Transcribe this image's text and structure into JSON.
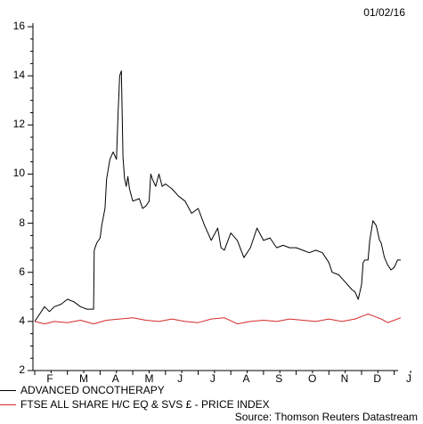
{
  "date_label": "01/02/16",
  "source": "Source: Thomson Reuters Datastream",
  "chart_data": {
    "type": "line",
    "title": "",
    "xlabel": "",
    "ylabel": "",
    "ylim": [
      2,
      16
    ],
    "yticks": [
      2,
      4,
      6,
      8,
      10,
      12,
      14,
      16
    ],
    "month_labels": [
      "F",
      "M",
      "A",
      "M",
      "J",
      "J",
      "A",
      "S",
      "O",
      "N",
      "D",
      "J"
    ],
    "grid": false,
    "legend_position": "bottom-left",
    "series": [
      {
        "name": "ADVANCED ONCOTHERAPY",
        "color": "#000000",
        "t": [
          0,
          0.15,
          0.3,
          0.45,
          0.6,
          0.8,
          1.0,
          1.2,
          1.4,
          1.6,
          1.8,
          1.82,
          1.9,
          2.0,
          2.05,
          2.15,
          2.2,
          2.3,
          2.4,
          2.5,
          2.55,
          2.6,
          2.65,
          2.7,
          2.75,
          2.8,
          2.85,
          2.9,
          3.0,
          3.2,
          3.3,
          3.4,
          3.5,
          3.55,
          3.6,
          3.7,
          3.8,
          3.9,
          4.0,
          4.2,
          4.4,
          4.6,
          4.8,
          5.0,
          5.2,
          5.4,
          5.6,
          5.7,
          5.8,
          6.0,
          6.2,
          6.4,
          6.6,
          6.8,
          7.0,
          7.2,
          7.4,
          7.6,
          7.8,
          8.0,
          8.2,
          8.4,
          8.6,
          8.8,
          9.0,
          9.1,
          9.3,
          9.5,
          9.7,
          9.8,
          9.9,
          10.0,
          10.05,
          10.1,
          10.2,
          10.25,
          10.35,
          10.45,
          10.55,
          10.6,
          10.7,
          10.8,
          10.9,
          11.0,
          11.1,
          11.2
        ],
        "values": [
          4.0,
          4.3,
          4.6,
          4.4,
          4.6,
          4.7,
          4.9,
          4.8,
          4.6,
          4.5,
          4.5,
          6.9,
          7.2,
          7.4,
          7.9,
          8.6,
          9.8,
          10.6,
          10.9,
          10.6,
          12.5,
          14.0,
          14.2,
          10.7,
          9.8,
          9.5,
          9.9,
          9.4,
          8.9,
          9.0,
          8.6,
          8.7,
          8.9,
          10.0,
          9.8,
          9.5,
          10.0,
          9.5,
          9.6,
          9.4,
          9.1,
          8.9,
          8.4,
          8.6,
          7.9,
          7.3,
          7.8,
          7.0,
          6.9,
          7.6,
          7.3,
          6.6,
          7.0,
          7.8,
          7.3,
          7.4,
          7.0,
          7.1,
          7.0,
          7.0,
          6.9,
          6.8,
          6.9,
          6.8,
          6.4,
          6.0,
          5.9,
          5.6,
          5.3,
          5.2,
          4.9,
          5.5,
          6.4,
          6.5,
          6.5,
          7.3,
          8.1,
          7.9,
          7.3,
          7.2,
          6.6,
          6.3,
          6.1,
          6.2,
          6.5,
          6.5
        ]
      },
      {
        "name": "FTSE ALL SHARE H/C EQ & SVS £ - PRICE INDEX",
        "color": "#d42a2a",
        "t": [
          0,
          0.3,
          0.6,
          1.0,
          1.4,
          1.8,
          2.2,
          2.6,
          3.0,
          3.4,
          3.8,
          4.2,
          4.6,
          5.0,
          5.4,
          5.8,
          6.2,
          6.6,
          7.0,
          7.4,
          7.8,
          8.2,
          8.6,
          9.0,
          9.4,
          9.8,
          10.0,
          10.2,
          10.4,
          10.6,
          10.8,
          11.0,
          11.2
        ],
        "values": [
          4.0,
          3.9,
          4.0,
          3.95,
          4.05,
          3.9,
          4.05,
          4.1,
          4.15,
          4.05,
          4.0,
          4.1,
          4.0,
          3.95,
          4.1,
          4.15,
          3.9,
          4.0,
          4.05,
          4.0,
          4.1,
          4.05,
          4.0,
          4.1,
          4.0,
          4.1,
          4.2,
          4.3,
          4.2,
          4.1,
          3.95,
          4.05,
          4.15
        ]
      }
    ]
  }
}
